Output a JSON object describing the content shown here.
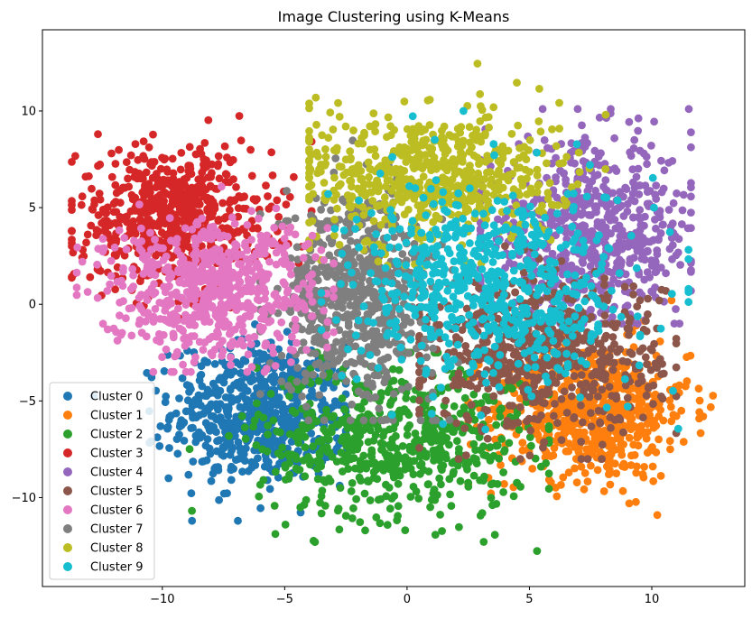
{
  "chart_data": {
    "type": "scatter",
    "title": "Image Clustering using K-Means",
    "xlabel": "",
    "ylabel": "",
    "xlim": [
      -14.9,
      13.8
    ],
    "ylim": [
      -14.6,
      14.2
    ],
    "xticks": [
      -10,
      -5,
      0,
      5,
      10
    ],
    "yticks": [
      -10,
      -5,
      0,
      5,
      10
    ],
    "xtick_labels": [
      "−10",
      "−5",
      "0",
      "5",
      "10"
    ],
    "ytick_labels": [
      "−10",
      "−5",
      "0",
      "5",
      "10"
    ],
    "grid": false,
    "legend_position": "lower-left",
    "series": [
      {
        "name": "Cluster 0",
        "color": "#1f77b4",
        "center": [
          -6.0,
          -5.6
        ],
        "spread": [
          1.8,
          1.8
        ],
        "extent": {
          "x": [
            -12.8,
            -2.5
          ],
          "y": [
            -11.2,
            -1.0
          ]
        }
      },
      {
        "name": "Cluster 1",
        "color": "#ff7f0e",
        "center": [
          7.5,
          -5.5
        ],
        "spread": [
          2.0,
          1.8
        ],
        "extent": {
          "x": [
            2.5,
            12.5
          ],
          "y": [
            -12.3,
            0.2
          ]
        }
      },
      {
        "name": "Cluster 2",
        "color": "#2ca02c",
        "center": [
          -0.5,
          -7.0
        ],
        "spread": [
          2.8,
          2.0
        ],
        "extent": {
          "x": [
            -10.3,
            5.8
          ],
          "y": [
            -13.7,
            -2.5
          ]
        }
      },
      {
        "name": "Cluster 3",
        "color": "#d62728",
        "center": [
          -9.5,
          4.5
        ],
        "spread": [
          2.0,
          1.8
        ],
        "extent": {
          "x": [
            -13.7,
            -3.9
          ],
          "y": [
            -2.8,
            10.0
          ]
        }
      },
      {
        "name": "Cluster 4",
        "color": "#9467bd",
        "center": [
          7.5,
          3.5
        ],
        "spread": [
          2.2,
          2.4
        ],
        "extent": {
          "x": [
            3.0,
            11.6
          ],
          "y": [
            -1.0,
            10.1
          ]
        }
      },
      {
        "name": "Cluster 5",
        "color": "#8c564b",
        "center": [
          5.5,
          -2.5
        ],
        "spread": [
          2.4,
          2.0
        ],
        "extent": {
          "x": [
            0.5,
            11.0
          ],
          "y": [
            -8.0,
            5.0
          ]
        }
      },
      {
        "name": "Cluster 7",
        "color": "#7f7f7f",
        "center": [
          -2.0,
          0.5
        ],
        "spread": [
          1.6,
          2.6
        ],
        "extent": {
          "x": [
            -6.0,
            2.5
          ],
          "y": [
            -6.0,
            10.4
          ]
        }
      },
      {
        "name": "Cluster 8",
        "color": "#bcbd22",
        "center": [
          1.0,
          6.5
        ],
        "spread": [
          2.6,
          1.8
        ],
        "extent": {
          "x": [
            -4.0,
            9.0
          ],
          "y": [
            2.0,
            12.9
          ]
        }
      },
      {
        "name": "Cluster 6",
        "color": "#e377c2",
        "center": [
          -8.0,
          0.8
        ],
        "spread": [
          2.2,
          1.8
        ],
        "extent": {
          "x": [
            -13.5,
            -3.0
          ],
          "y": [
            -3.5,
            6.5
          ]
        }
      },
      {
        "name": "Cluster 9",
        "color": "#17becf",
        "center": [
          3.5,
          1.0
        ],
        "spread": [
          2.8,
          2.6
        ],
        "extent": {
          "x": [
            -3.5,
            11.5
          ],
          "y": [
            -6.5,
            10.0
          ]
        }
      }
    ],
    "legend": [
      {
        "label": "Cluster 0",
        "color": "#1f77b4"
      },
      {
        "label": "Cluster 1",
        "color": "#ff7f0e"
      },
      {
        "label": "Cluster 2",
        "color": "#2ca02c"
      },
      {
        "label": "Cluster 3",
        "color": "#d62728"
      },
      {
        "label": "Cluster 4",
        "color": "#9467bd"
      },
      {
        "label": "Cluster 5",
        "color": "#8c564b"
      },
      {
        "label": "Cluster 6",
        "color": "#e377c2"
      },
      {
        "label": "Cluster 7",
        "color": "#7f7f7f"
      },
      {
        "label": "Cluster 8",
        "color": "#bcbd22"
      },
      {
        "label": "Cluster 9",
        "color": "#17becf"
      }
    ]
  }
}
